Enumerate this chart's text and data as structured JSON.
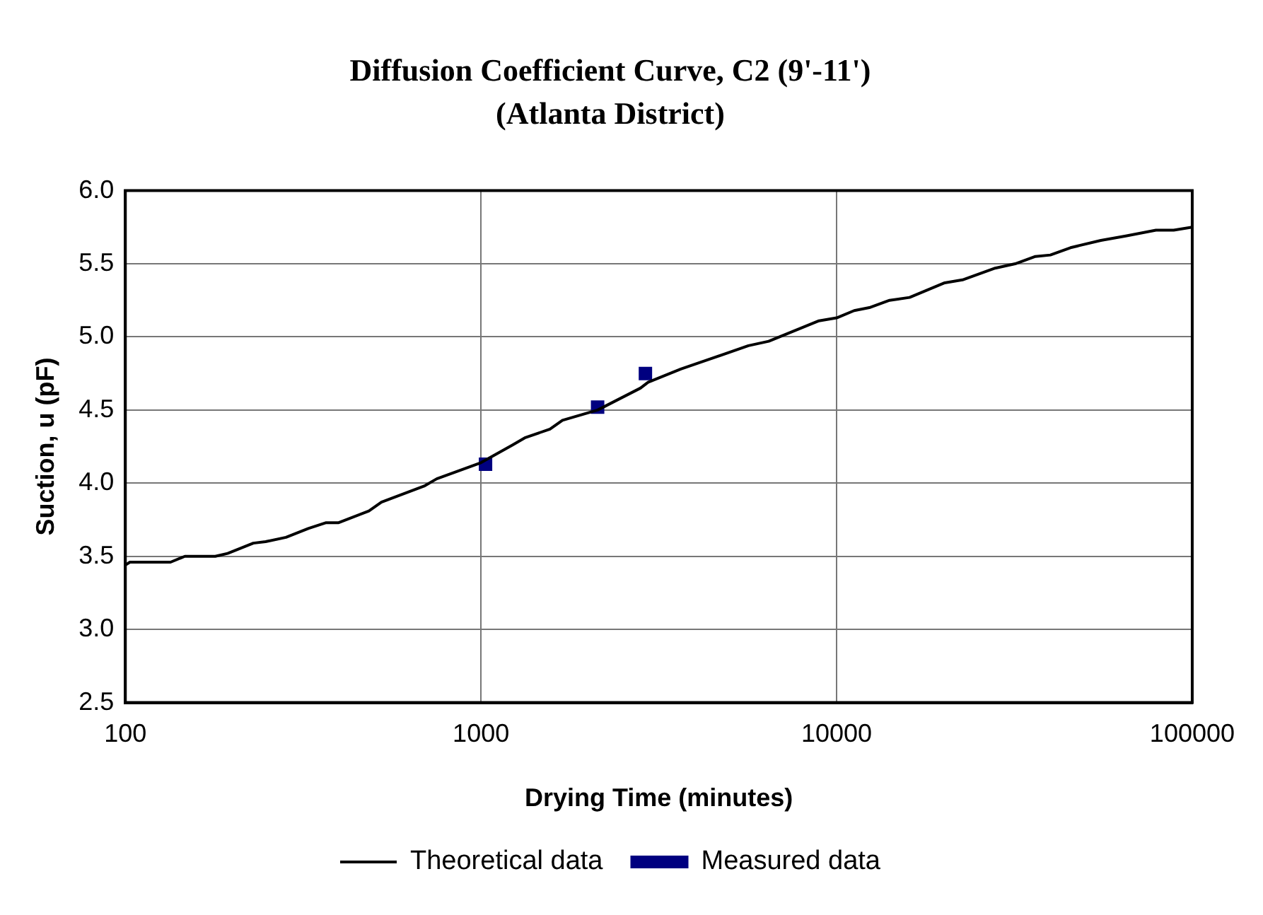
{
  "chart_data": {
    "type": "line",
    "title": "Diffusion Coefficient Curve, C2 (9'-11')",
    "subtitle": "(Atlanta District)",
    "xlabel": "Drying Time (minutes)",
    "ylabel": "Suction, u (pF)",
    "log": "x",
    "grid": true,
    "legend": "bottom",
    "xlim": [
      100,
      100000
    ],
    "xticks": [
      100,
      1000,
      10000,
      100000
    ],
    "ylim": [
      2.5,
      6.0
    ],
    "yticks": [
      {
        "value": 2.5,
        "label": "2.5"
      },
      {
        "value": 3.0,
        "label": "3.0"
      },
      {
        "value": 3.5,
        "label": "3.5"
      },
      {
        "value": 4.0,
        "label": "4.0"
      },
      {
        "value": 4.5,
        "label": "4.5"
      },
      {
        "value": 5.0,
        "label": "5.0"
      },
      {
        "value": 5.5,
        "label": "5.5"
      },
      {
        "value": 6.0,
        "label": "6.0"
      }
    ],
    "series": [
      {
        "name": "Theoretical data",
        "type": "line",
        "marker": "none",
        "line_style": "solid",
        "color": "#000000",
        "x": [
          100,
          103,
          134,
          147,
          179,
          194,
          229,
          248,
          283,
          327,
          367,
          398,
          484,
          525,
          692,
          751,
          1000,
          1225,
          1328,
          1563,
          1695,
          2128,
          2808,
          2950,
          3648,
          5649,
          6442,
          8920,
          10000,
          11206,
          12360,
          14090,
          16040,
          20140,
          22590,
          27920,
          31780,
          36220,
          39910,
          45470,
          55330,
          65000,
          79070,
          88700,
          100000
        ],
        "values": [
          3.44,
          3.46,
          3.46,
          3.5,
          3.5,
          3.52,
          3.59,
          3.6,
          3.63,
          3.69,
          3.73,
          3.73,
          3.81,
          3.87,
          3.98,
          4.03,
          4.14,
          4.26,
          4.31,
          4.37,
          4.43,
          4.5,
          4.65,
          4.69,
          4.78,
          4.94,
          4.97,
          5.11,
          5.13,
          5.18,
          5.2,
          5.25,
          5.27,
          5.37,
          5.39,
          5.47,
          5.5,
          5.55,
          5.56,
          5.61,
          5.66,
          5.69,
          5.73,
          5.73,
          5.75
        ]
      },
      {
        "name": "Measured data",
        "type": "scatter",
        "marker": "square",
        "color": "#000080",
        "x": [
          1030,
          2128,
          2900
        ],
        "values": [
          4.13,
          4.52,
          4.75
        ]
      }
    ]
  }
}
